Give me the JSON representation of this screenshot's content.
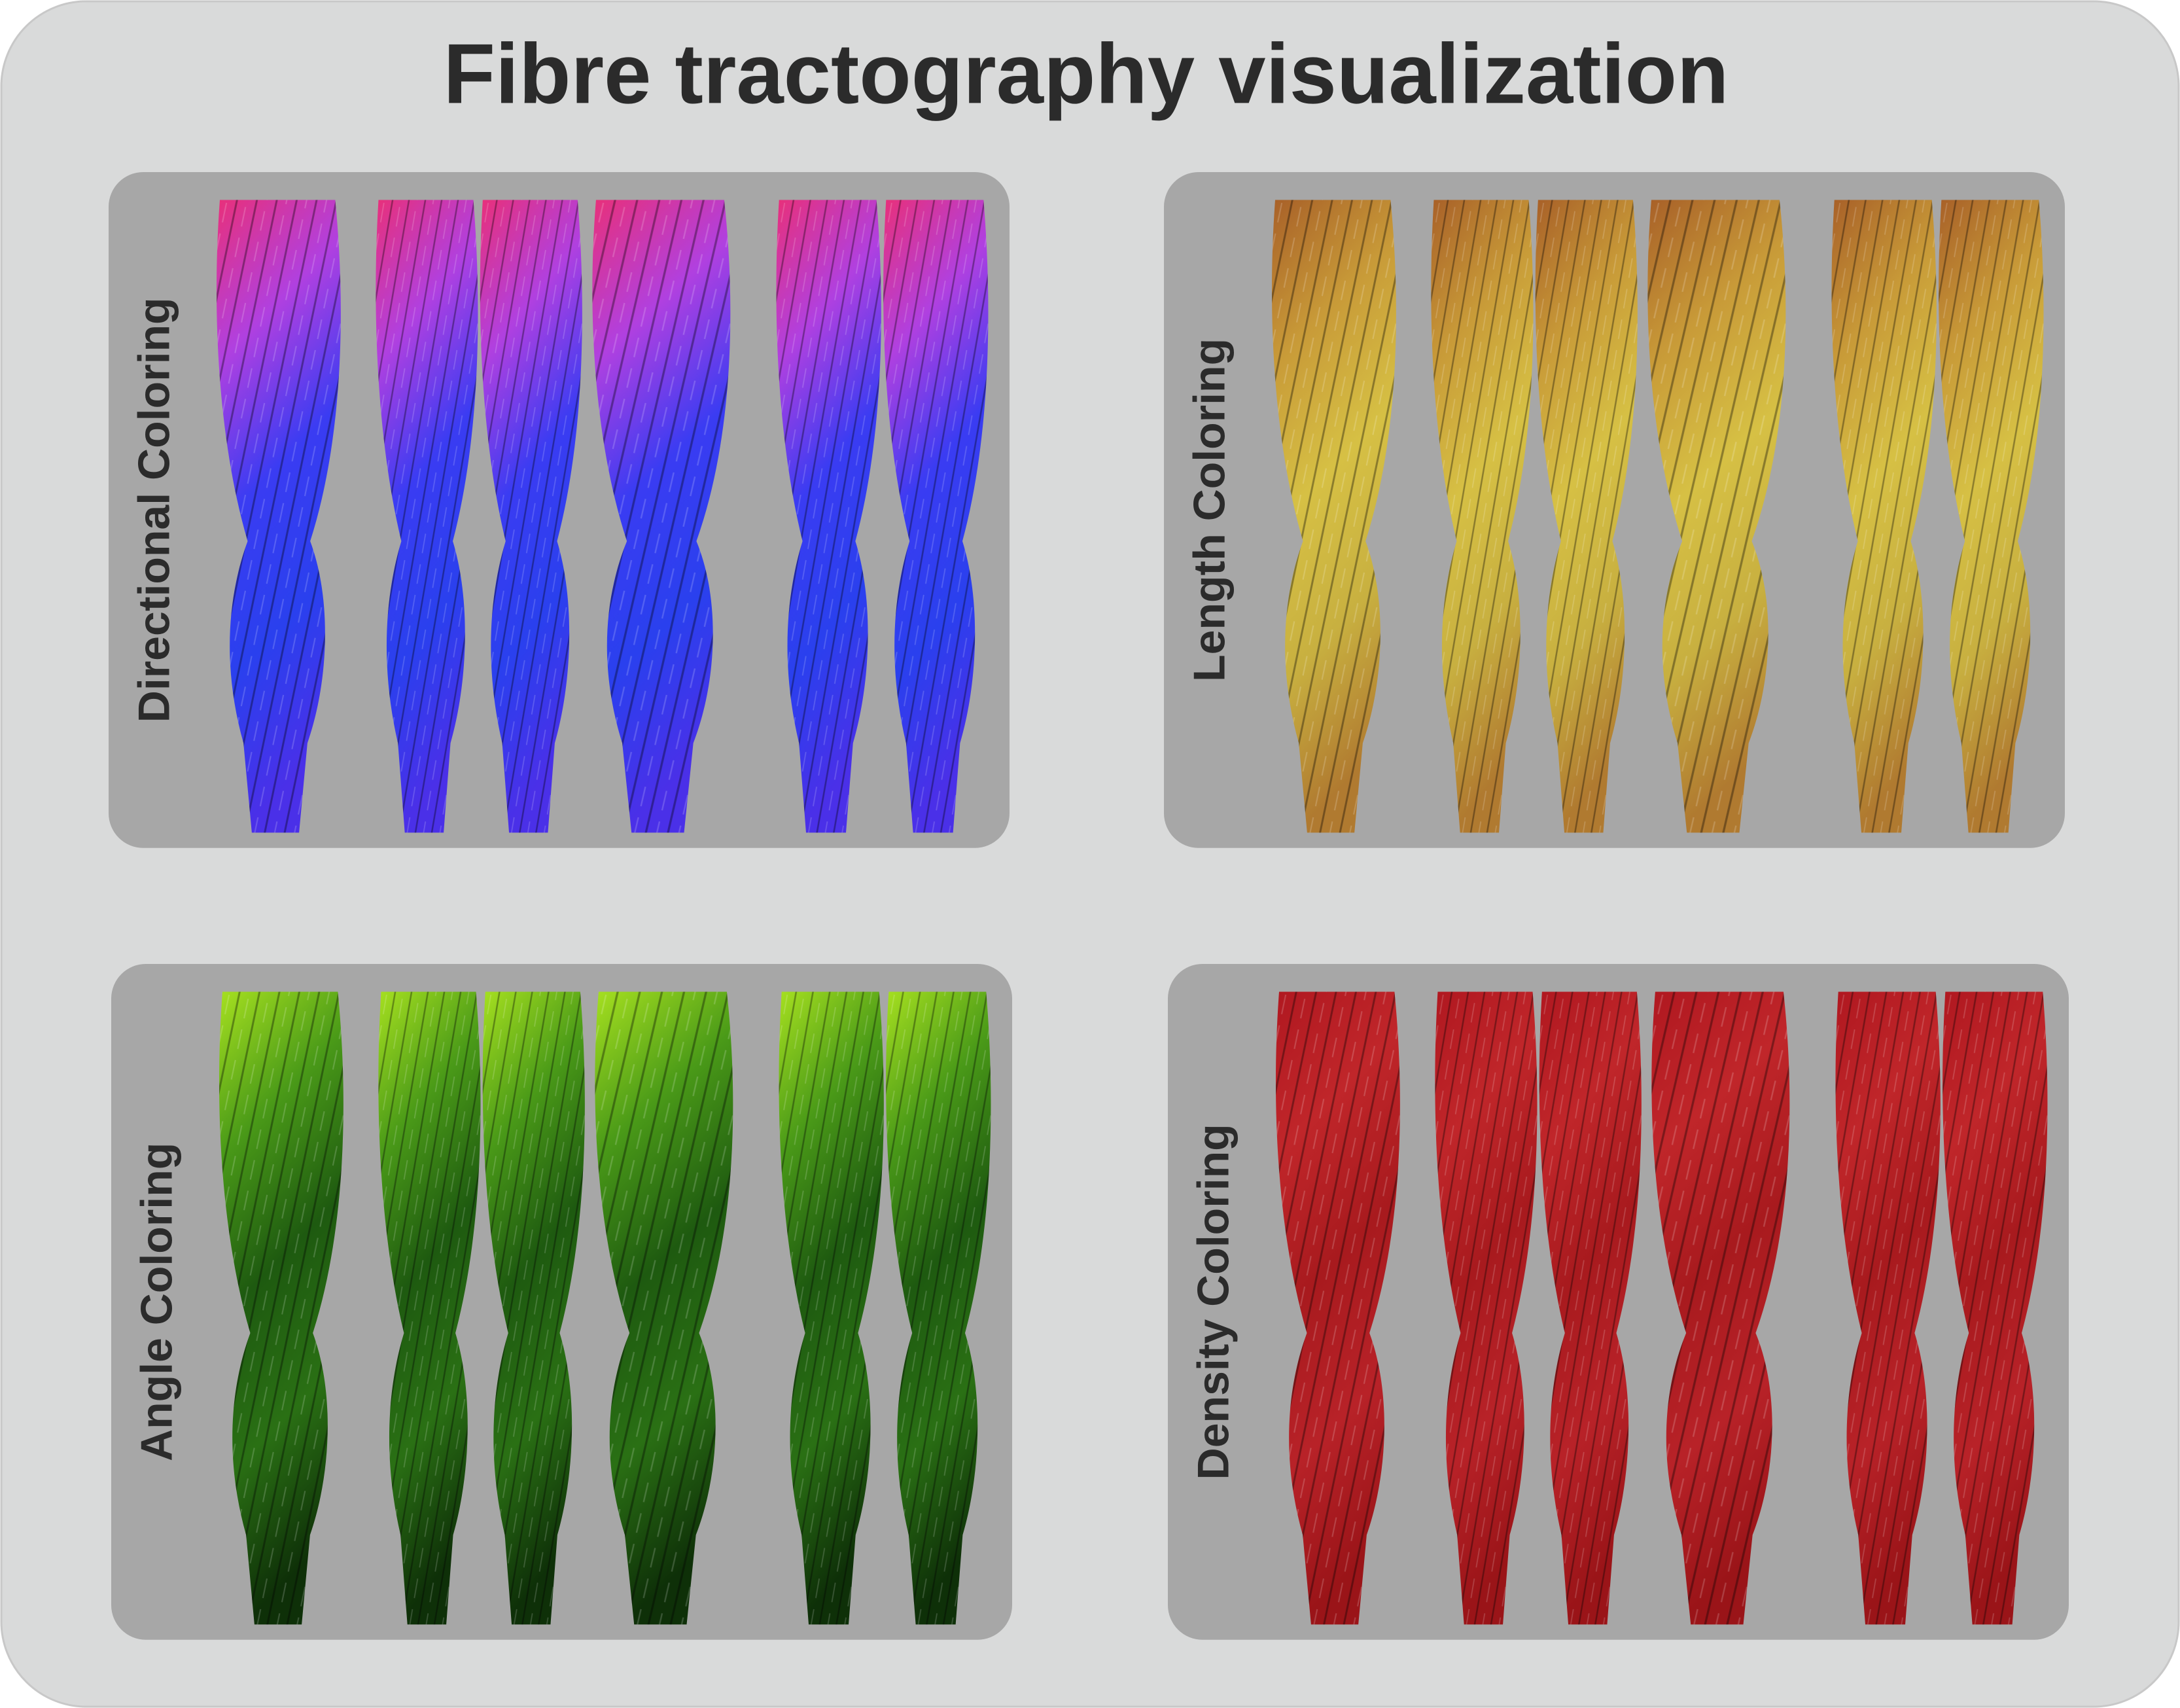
{
  "title": "Fibre tractography visualization",
  "panels": [
    {
      "label": "Directional Coloring"
    },
    {
      "label": "Length Coloring"
    },
    {
      "label": "Angle Coloring"
    },
    {
      "label": "Density Coloring"
    }
  ]
}
